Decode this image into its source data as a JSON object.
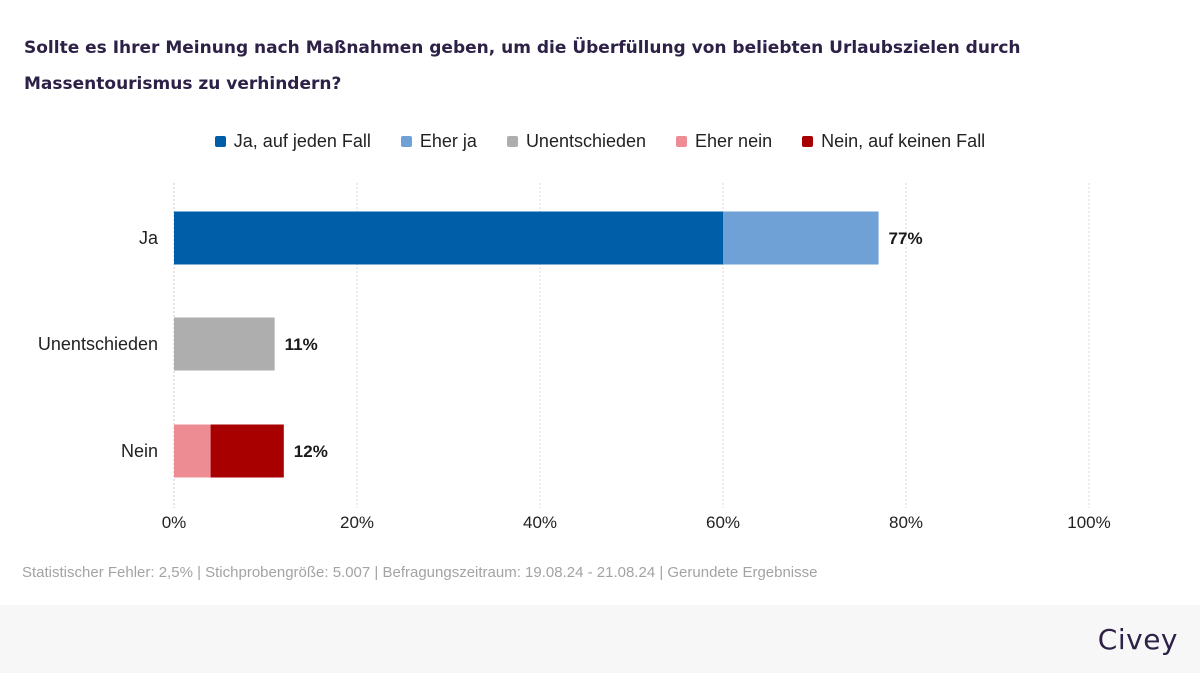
{
  "title": "Sollte es Ihrer Meinung nach Maßnahmen geben, um die Überfüllung von beliebten Urlaubszielen durch Massentourismus zu verhindern?",
  "colors": {
    "ja_auf_jeden_fall": "#005ea8",
    "eher_ja": "#6fa0d6",
    "unentschieden": "#aeaeae",
    "eher_nein": "#ee8c94",
    "nein_auf_keinen_fall": "#a80000",
    "grid": "#d9d9d9",
    "axis": "#c8c8c8"
  },
  "legend": [
    {
      "label": "Ja, auf jeden Fall",
      "color": "#005ea8"
    },
    {
      "label": "Eher ja",
      "color": "#6fa0d6"
    },
    {
      "label": "Unentschieden",
      "color": "#aeaeae"
    },
    {
      "label": "Eher nein",
      "color": "#ee8c94"
    },
    {
      "label": "Nein, auf keinen Fall",
      "color": "#a80000"
    }
  ],
  "chart_data": {
    "type": "bar",
    "orientation": "horizontal",
    "stacked": true,
    "categories": [
      "Ja",
      "Unentschieden",
      "Nein"
    ],
    "series": [
      {
        "name": "Ja, auf jeden Fall",
        "values": [
          60,
          0,
          0
        ]
      },
      {
        "name": "Eher ja",
        "values": [
          17,
          0,
          0
        ]
      },
      {
        "name": "Unentschieden",
        "values": [
          0,
          11,
          0
        ]
      },
      {
        "name": "Eher nein",
        "values": [
          0,
          0,
          4
        ]
      },
      {
        "name": "Nein, auf keinen Fall",
        "values": [
          0,
          0,
          8
        ]
      }
    ],
    "totals": [
      77,
      11,
      12
    ],
    "total_labels": [
      "77%",
      "11%",
      "12%"
    ],
    "xlim": [
      0,
      100
    ],
    "xticks": [
      0,
      20,
      40,
      60,
      80,
      100
    ],
    "xtick_labels": [
      "0%",
      "20%",
      "40%",
      "60%",
      "80%",
      "100%"
    ],
    "grid": true,
    "legend_position": "top"
  },
  "footer": {
    "note": "Statistischer Fehler: 2,5% | Stichprobengröße: 5.007 | Befragungszeitraum: 19.08.24 - 21.08.24 | Gerundete Ergebnisse",
    "brand": "Civey"
  }
}
